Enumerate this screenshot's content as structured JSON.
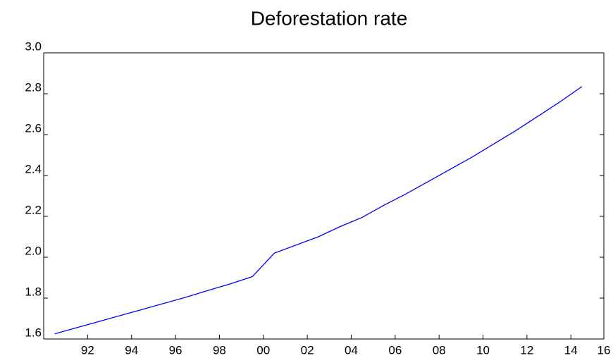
{
  "chart_data": {
    "type": "line",
    "title": "Deforestation rate",
    "x": [
      1991,
      1992,
      1993,
      1994,
      1995,
      1996,
      1997,
      1998,
      1999,
      2000,
      2001,
      2002,
      2003,
      2004,
      2005,
      2006,
      2007,
      2008,
      2009,
      2010,
      2011,
      2012,
      2013,
      2014,
      2015
    ],
    "series": [
      {
        "name": "Deforestation rate",
        "color": "#0000ff",
        "values": [
          1.625,
          1.655,
          1.685,
          1.715,
          1.745,
          1.775,
          1.805,
          1.838,
          1.87,
          1.905,
          2.02,
          2.06,
          2.1,
          2.15,
          2.195,
          2.255,
          2.31,
          2.37,
          2.43,
          2.49,
          2.555,
          2.62,
          2.69,
          2.76,
          2.835
        ]
      }
    ],
    "xlim": [
      1990.5,
      2016
    ],
    "xticks": [
      {
        "value": 1992.5,
        "label": "92"
      },
      {
        "value": 1994.5,
        "label": "94"
      },
      {
        "value": 1996.5,
        "label": "96"
      },
      {
        "value": 1998.5,
        "label": "98"
      },
      {
        "value": 2000.5,
        "label": "00"
      },
      {
        "value": 2002.5,
        "label": "02"
      },
      {
        "value": 2004.5,
        "label": "04"
      },
      {
        "value": 2006.5,
        "label": "06"
      },
      {
        "value": 2008.5,
        "label": "08"
      },
      {
        "value": 2010.5,
        "label": "10"
      },
      {
        "value": 2012.5,
        "label": "12"
      },
      {
        "value": 2014.5,
        "label": "14"
      },
      {
        "value": 2016,
        "label": "16"
      }
    ],
    "ylim": [
      1.6,
      3.0
    ],
    "yticks": [
      1.6,
      1.8,
      {
        "value": 2.0,
        "label": "2.0"
      },
      2.2,
      2.4,
      2.6,
      2.8,
      {
        "value": 3.0,
        "label": "3.0"
      }
    ],
    "grid": false
  }
}
